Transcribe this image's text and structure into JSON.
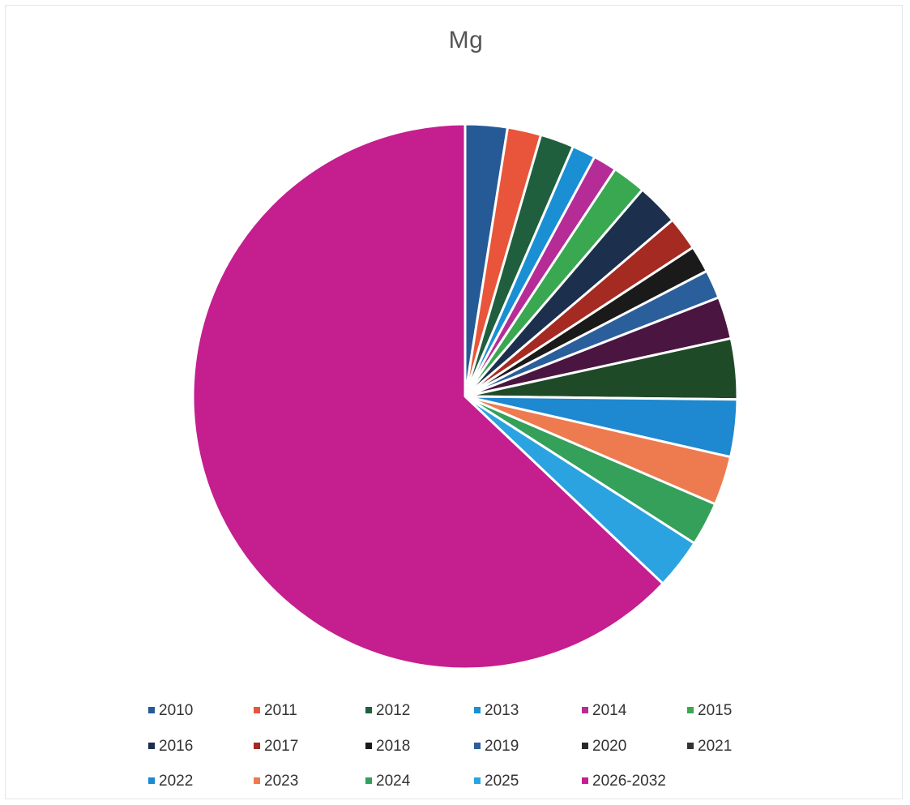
{
  "chart_data": {
    "type": "pie",
    "title": "Mg",
    "categories": [
      "2010",
      "2011",
      "2012",
      "2013",
      "2014",
      "2015",
      "2016",
      "2017",
      "2018",
      "2019",
      "2020",
      "2021",
      "2022",
      "2023",
      "2024",
      "2025",
      "2026-2032"
    ],
    "values": [
      2.5,
      2.0,
      2.0,
      1.4,
      1.4,
      2.0,
      2.5,
      2.0,
      1.6,
      1.7,
      2.5,
      3.6,
      3.4,
      2.9,
      2.6,
      3.0,
      63.0
    ],
    "colors": [
      "#255a96",
      "#e8553a",
      "#1f5f3e",
      "#1a8fd4",
      "#b52c97",
      "#3aa850",
      "#1c2f4c",
      "#a52a21",
      "#1a1a1a",
      "#2b5f9c",
      "#4a1540",
      "#1f4a28",
      "#1e88d0",
      "#ee7a50",
      "#34a05a",
      "#2ba3e0",
      "#c41e8f"
    ],
    "legend_position": "bottom",
    "legend_colors": [
      "#255a96",
      "#e8553a",
      "#1f5f3e",
      "#1a8fd4",
      "#b52c97",
      "#3aa850",
      "#1c2f4c",
      "#a52a21",
      "#1a1a1a",
      "#2b5f9c",
      "#2a2a2a",
      "#333333",
      "#1e88d0",
      "#ee7a50",
      "#34a05a",
      "#2ba3e0",
      "#c41e8f"
    ]
  }
}
